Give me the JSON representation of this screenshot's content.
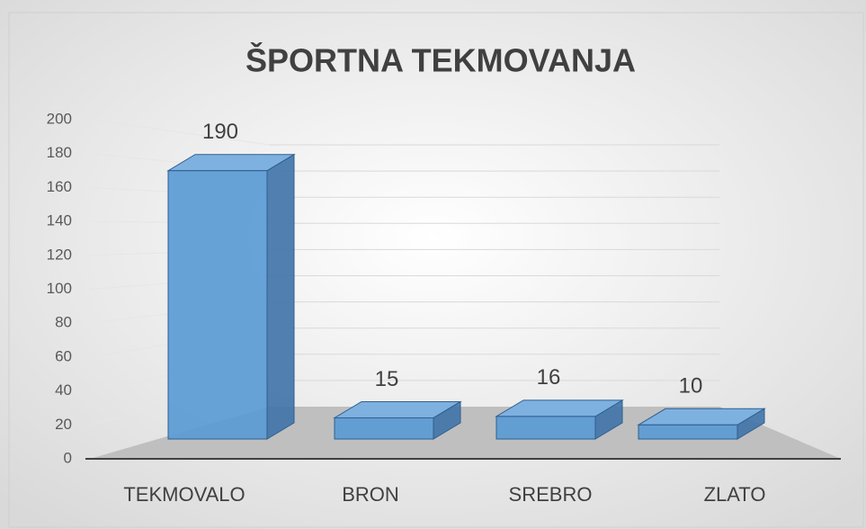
{
  "chart_data": {
    "type": "bar3d",
    "title": "ŠPORTNA TEKMOVANJA",
    "categories": [
      "TEKMOVALO",
      "BRON",
      "SREBRO",
      "ZLATO"
    ],
    "values": [
      190,
      15,
      16,
      10
    ],
    "color": "#5b9bd5",
    "ylim": [
      0,
      200
    ],
    "yticks": [
      0,
      20,
      40,
      60,
      80,
      100,
      120,
      140,
      160,
      180,
      200
    ],
    "grid": true
  }
}
